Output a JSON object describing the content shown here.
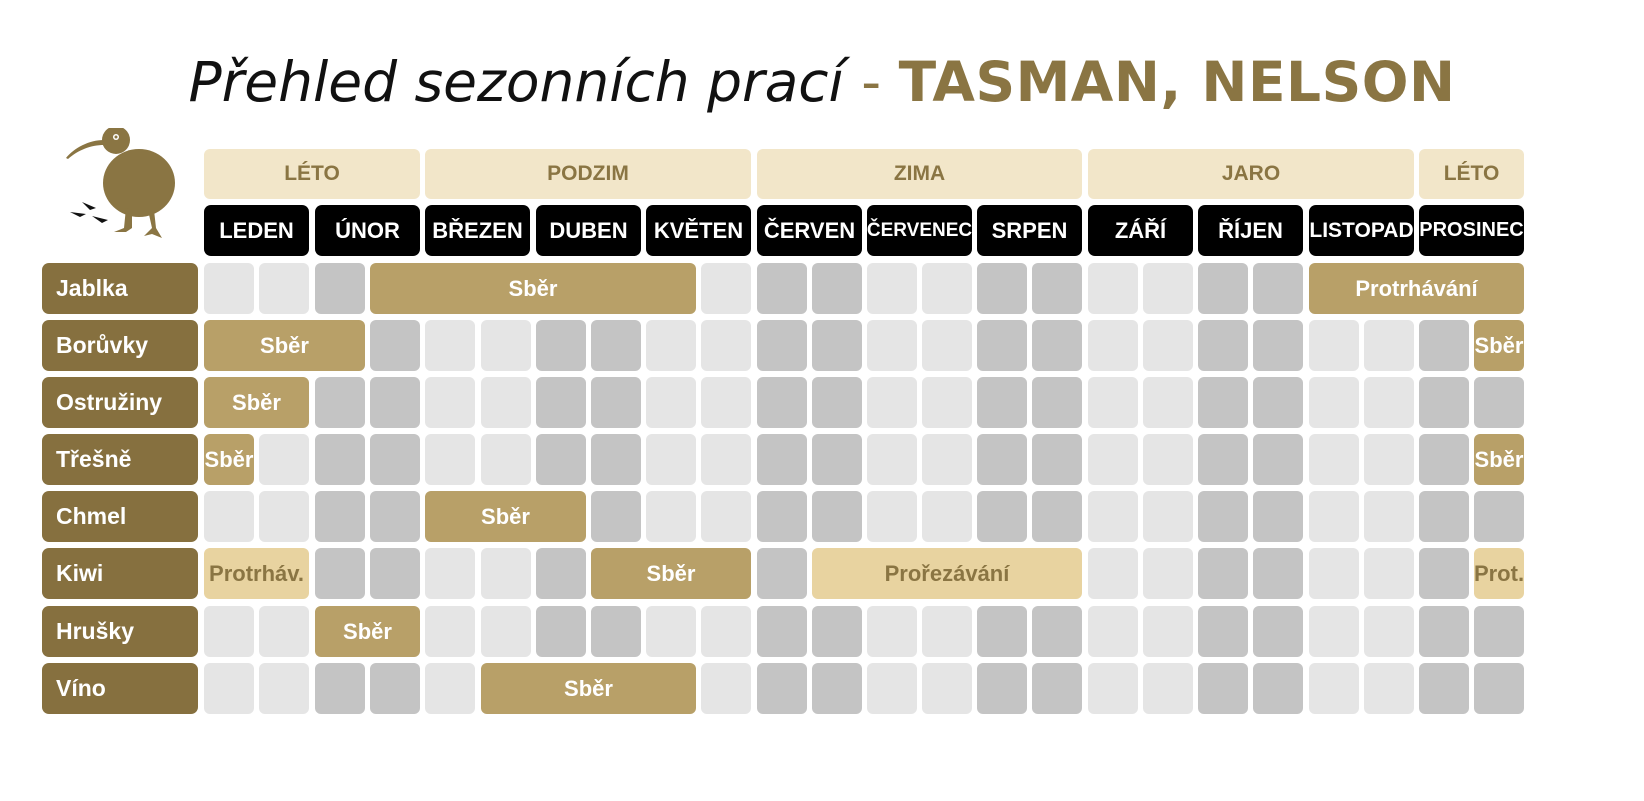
{
  "title": {
    "main": "Přehled sezonních prací",
    "separator": " - ",
    "region": "TASMAN, NELSON"
  },
  "logo_icon": "kiwi-bird-icon",
  "colors": {
    "accent": "#86703f",
    "harvest": "#b8a068",
    "pruning": "#e8d3a0",
    "season_bg": "#f2e6c9",
    "cell_light": "#e5e5e5",
    "cell_dark": "#c4c4c4"
  },
  "seasons": [
    {
      "label": "LÉTO",
      "months": [
        0,
        1
      ]
    },
    {
      "label": "PODZIM",
      "months": [
        2,
        4
      ]
    },
    {
      "label": "ZIMA",
      "months": [
        5,
        7
      ]
    },
    {
      "label": "JARO",
      "months": [
        8,
        10
      ]
    },
    {
      "label": "LÉTO",
      "months": [
        11,
        11
      ]
    }
  ],
  "months": [
    "LEDEN",
    "ÚNOR",
    "BŘEZEN",
    "DUBEN",
    "KVĚTEN",
    "ČERVEN",
    "ČERVENEC",
    "SRPEN",
    "ZÁŘÍ",
    "ŘÍJEN",
    "LISTOPAD",
    "PROSINEC"
  ],
  "crops": [
    {
      "name": "Jablka",
      "activities": [
        {
          "label": "Sběr",
          "type": "harvest",
          "start": 3,
          "end": 8
        },
        {
          "label": "Protrhávání",
          "type": "harvest",
          "start": 20,
          "end": 23
        }
      ]
    },
    {
      "name": "Borůvky",
      "activities": [
        {
          "label": "Sběr",
          "type": "harvest",
          "start": 0,
          "end": 2
        },
        {
          "label": "Sběr",
          "type": "harvest",
          "start": 23,
          "end": 23
        }
      ]
    },
    {
      "name": "Ostružiny",
      "activities": [
        {
          "label": "Sběr",
          "type": "harvest",
          "start": 0,
          "end": 1
        }
      ]
    },
    {
      "name": "Třešně",
      "activities": [
        {
          "label": "Sběr",
          "type": "harvest",
          "start": 0,
          "end": 0
        },
        {
          "label": "Sběr",
          "type": "harvest",
          "start": 23,
          "end": 23
        }
      ]
    },
    {
      "name": "Chmel",
      "activities": [
        {
          "label": "Sběr",
          "type": "harvest",
          "start": 4,
          "end": 6
        }
      ]
    },
    {
      "name": "Kiwi",
      "activities": [
        {
          "label": "Protrháv.",
          "type": "pruning",
          "start": 0,
          "end": 1
        },
        {
          "label": "Sběr",
          "type": "harvest",
          "start": 7,
          "end": 9
        },
        {
          "label": "Prořezávání",
          "type": "pruning",
          "start": 11,
          "end": 15
        },
        {
          "label": "Prot.",
          "type": "pruning",
          "start": 23,
          "end": 23
        }
      ]
    },
    {
      "name": "Hrušky",
      "activities": [
        {
          "label": "Sběr",
          "type": "harvest",
          "start": 2,
          "end": 3
        }
      ]
    },
    {
      "name": "Víno",
      "activities": [
        {
          "label": "Sběr",
          "type": "harvest",
          "start": 5,
          "end": 8
        }
      ]
    }
  ]
}
